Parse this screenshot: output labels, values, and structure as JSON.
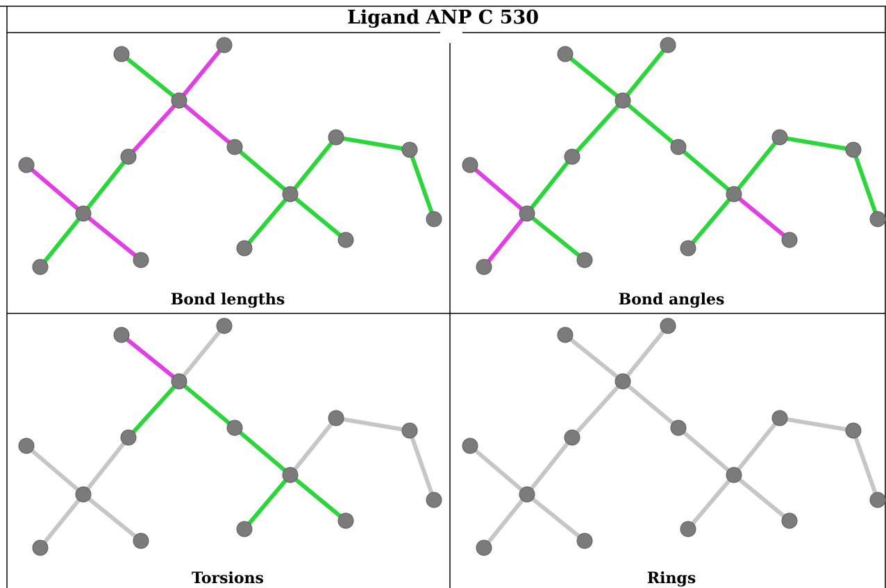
{
  "title": "Ligand ANP C 530",
  "colors": {
    "pass": "#2bd63a",
    "outlier": "#e13ee6",
    "neutral": "#c6c6c6",
    "atom": "#7b7b7b",
    "grid": "#000000"
  },
  "panels": [
    {
      "caption": "Bond lengths",
      "bonds": [
        "outlier",
        "pass",
        "pass",
        "outlier",
        "outlier",
        "pass",
        "outlier",
        "outlier",
        "pass",
        "pass",
        "pass",
        "pass",
        "pass",
        "pass"
      ]
    },
    {
      "caption": "Bond angles",
      "bonds": [
        "outlier",
        "outlier",
        "pass",
        "pass",
        "pass",
        "pass",
        "pass",
        "pass",
        "pass",
        "pass",
        "outlier",
        "pass",
        "pass",
        "pass"
      ]
    },
    {
      "caption": "Torsions",
      "bonds": [
        "neutral",
        "neutral",
        "neutral",
        "neutral",
        "pass",
        "outlier",
        "neutral",
        "pass",
        "pass",
        "pass",
        "pass",
        "neutral",
        "neutral",
        "neutral"
      ]
    },
    {
      "caption": "Rings",
      "bonds": [
        "neutral",
        "neutral",
        "neutral",
        "neutral",
        "neutral",
        "neutral",
        "neutral",
        "neutral",
        "neutral",
        "neutral",
        "neutral",
        "neutral",
        "neutral",
        "neutral"
      ]
    }
  ]
}
